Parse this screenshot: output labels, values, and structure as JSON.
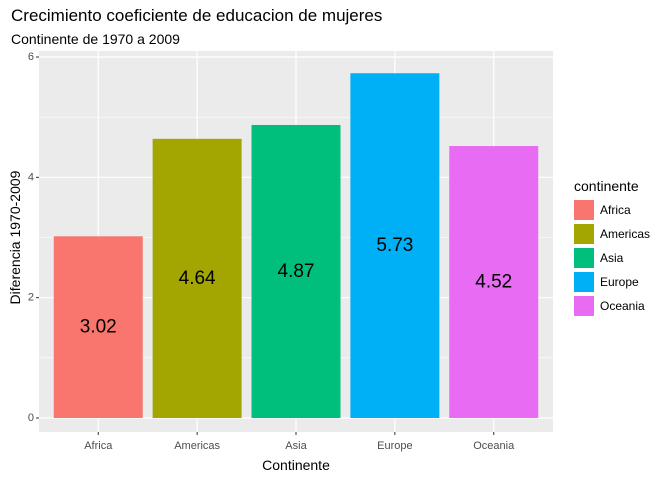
{
  "chart_data": {
    "type": "bar",
    "title": "Crecimiento coeficiente de educacion de mujeres",
    "subtitle": "Continente de 1970 a 2009",
    "xlabel": "Continente",
    "ylabel": "Diferencia 1970-2009",
    "categories": [
      "Africa",
      "Americas",
      "Asia",
      "Europe",
      "Oceania"
    ],
    "values": [
      3.02,
      4.64,
      4.87,
      5.73,
      4.52
    ],
    "data_labels": [
      "3.02",
      "4.64",
      "4.87",
      "5.73",
      "4.52"
    ],
    "colors": [
      "#F8766D",
      "#A3A500",
      "#00BF7D",
      "#00B0F6",
      "#E76BF3"
    ],
    "ylim": [
      0,
      6
    ],
    "yticks": [
      0,
      2,
      4,
      6
    ],
    "ytick_labels": [
      "0",
      "2",
      "4",
      "6"
    ],
    "grid": true,
    "panel_background": "#EBEBEB",
    "legend": {
      "title": "continente",
      "position": "right",
      "entries": [
        "Africa",
        "Americas",
        "Asia",
        "Europe",
        "Oceania"
      ]
    }
  }
}
